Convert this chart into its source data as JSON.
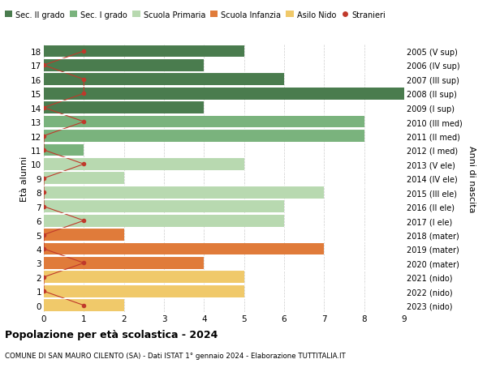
{
  "ages": [
    18,
    17,
    16,
    15,
    14,
    13,
    12,
    11,
    10,
    9,
    8,
    7,
    6,
    5,
    4,
    3,
    2,
    1,
    0
  ],
  "years": [
    "2005 (V sup)",
    "2006 (IV sup)",
    "2007 (III sup)",
    "2008 (II sup)",
    "2009 (I sup)",
    "2010 (III med)",
    "2011 (II med)",
    "2012 (I med)",
    "2013 (V ele)",
    "2014 (IV ele)",
    "2015 (III ele)",
    "2016 (II ele)",
    "2017 (I ele)",
    "2018 (mater)",
    "2019 (mater)",
    "2020 (mater)",
    "2021 (nido)",
    "2022 (nido)",
    "2023 (nido)"
  ],
  "bar_values": [
    5,
    4,
    6,
    9,
    4,
    8,
    8,
    1,
    5,
    2,
    7,
    6,
    6,
    2,
    7,
    4,
    5,
    5,
    2
  ],
  "bar_colors": [
    "#4a7c4e",
    "#4a7c4e",
    "#4a7c4e",
    "#4a7c4e",
    "#4a7c4e",
    "#7ab37d",
    "#7ab37d",
    "#7ab37d",
    "#b8d9b0",
    "#b8d9b0",
    "#b8d9b0",
    "#b8d9b0",
    "#b8d9b0",
    "#e07b3a",
    "#e07b3a",
    "#e07b3a",
    "#f0c96a",
    "#f0c96a",
    "#f0c96a"
  ],
  "stranieri_x": [
    1,
    0,
    1,
    1,
    0,
    1,
    0,
    0,
    1,
    0,
    0,
    0,
    1,
    0,
    0,
    1,
    0,
    0,
    1
  ],
  "title": "Popolazione per età scolastica - 2024",
  "subtitle": "COMUNE DI SAN MAURO CILENTO (SA) - Dati ISTAT 1° gennaio 2024 - Elaborazione TUTTITALIA.IT",
  "ylabel": "Età alunni",
  "ylabel2": "Anni di nascita",
  "xlim": [
    0,
    9
  ],
  "legend_labels": [
    "Sec. II grado",
    "Sec. I grado",
    "Scuola Primaria",
    "Scuola Infanzia",
    "Asilo Nido",
    "Stranieri"
  ],
  "legend_colors": [
    "#4a7c4e",
    "#7ab37d",
    "#b8d9b0",
    "#e07b3a",
    "#f0c96a",
    "#c0392b"
  ],
  "grid_color": "#cccccc",
  "bg_color": "#ffffff",
  "bar_height": 0.85,
  "stranieri_color": "#c0392b",
  "line_color": "#c0392b"
}
